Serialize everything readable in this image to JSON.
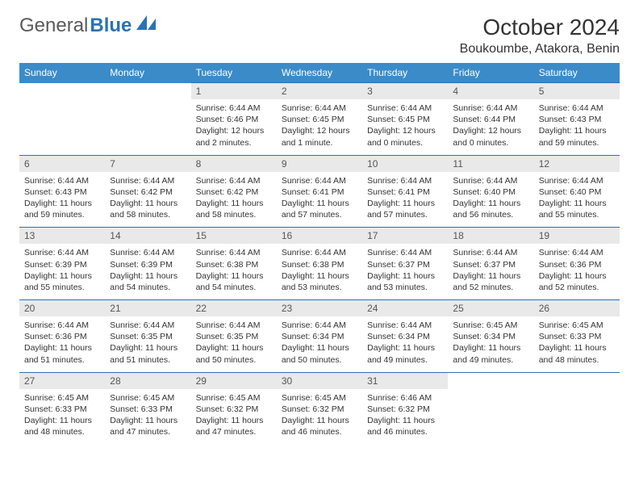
{
  "logo": {
    "text1": "General",
    "text2": "Blue"
  },
  "title": "October 2024",
  "location": "Boukoumbe, Atakora, Benin",
  "colors": {
    "header_bg": "#3b8bc9",
    "header_text": "#ffffff",
    "daynum_bg": "#e9e9e9",
    "border": "#2a72b5",
    "logo_gray": "#5a5a5a",
    "logo_blue": "#2a72b5"
  },
  "weekdays": [
    "Sunday",
    "Monday",
    "Tuesday",
    "Wednesday",
    "Thursday",
    "Friday",
    "Saturday"
  ],
  "weeks": [
    [
      null,
      null,
      {
        "n": "1",
        "sr": "Sunrise: 6:44 AM",
        "ss": "Sunset: 6:46 PM",
        "dl": "Daylight: 12 hours and 2 minutes."
      },
      {
        "n": "2",
        "sr": "Sunrise: 6:44 AM",
        "ss": "Sunset: 6:45 PM",
        "dl": "Daylight: 12 hours and 1 minute."
      },
      {
        "n": "3",
        "sr": "Sunrise: 6:44 AM",
        "ss": "Sunset: 6:45 PM",
        "dl": "Daylight: 12 hours and 0 minutes."
      },
      {
        "n": "4",
        "sr": "Sunrise: 6:44 AM",
        "ss": "Sunset: 6:44 PM",
        "dl": "Daylight: 12 hours and 0 minutes."
      },
      {
        "n": "5",
        "sr": "Sunrise: 6:44 AM",
        "ss": "Sunset: 6:43 PM",
        "dl": "Daylight: 11 hours and 59 minutes."
      }
    ],
    [
      {
        "n": "6",
        "sr": "Sunrise: 6:44 AM",
        "ss": "Sunset: 6:43 PM",
        "dl": "Daylight: 11 hours and 59 minutes."
      },
      {
        "n": "7",
        "sr": "Sunrise: 6:44 AM",
        "ss": "Sunset: 6:42 PM",
        "dl": "Daylight: 11 hours and 58 minutes."
      },
      {
        "n": "8",
        "sr": "Sunrise: 6:44 AM",
        "ss": "Sunset: 6:42 PM",
        "dl": "Daylight: 11 hours and 58 minutes."
      },
      {
        "n": "9",
        "sr": "Sunrise: 6:44 AM",
        "ss": "Sunset: 6:41 PM",
        "dl": "Daylight: 11 hours and 57 minutes."
      },
      {
        "n": "10",
        "sr": "Sunrise: 6:44 AM",
        "ss": "Sunset: 6:41 PM",
        "dl": "Daylight: 11 hours and 57 minutes."
      },
      {
        "n": "11",
        "sr": "Sunrise: 6:44 AM",
        "ss": "Sunset: 6:40 PM",
        "dl": "Daylight: 11 hours and 56 minutes."
      },
      {
        "n": "12",
        "sr": "Sunrise: 6:44 AM",
        "ss": "Sunset: 6:40 PM",
        "dl": "Daylight: 11 hours and 55 minutes."
      }
    ],
    [
      {
        "n": "13",
        "sr": "Sunrise: 6:44 AM",
        "ss": "Sunset: 6:39 PM",
        "dl": "Daylight: 11 hours and 55 minutes."
      },
      {
        "n": "14",
        "sr": "Sunrise: 6:44 AM",
        "ss": "Sunset: 6:39 PM",
        "dl": "Daylight: 11 hours and 54 minutes."
      },
      {
        "n": "15",
        "sr": "Sunrise: 6:44 AM",
        "ss": "Sunset: 6:38 PM",
        "dl": "Daylight: 11 hours and 54 minutes."
      },
      {
        "n": "16",
        "sr": "Sunrise: 6:44 AM",
        "ss": "Sunset: 6:38 PM",
        "dl": "Daylight: 11 hours and 53 minutes."
      },
      {
        "n": "17",
        "sr": "Sunrise: 6:44 AM",
        "ss": "Sunset: 6:37 PM",
        "dl": "Daylight: 11 hours and 53 minutes."
      },
      {
        "n": "18",
        "sr": "Sunrise: 6:44 AM",
        "ss": "Sunset: 6:37 PM",
        "dl": "Daylight: 11 hours and 52 minutes."
      },
      {
        "n": "19",
        "sr": "Sunrise: 6:44 AM",
        "ss": "Sunset: 6:36 PM",
        "dl": "Daylight: 11 hours and 52 minutes."
      }
    ],
    [
      {
        "n": "20",
        "sr": "Sunrise: 6:44 AM",
        "ss": "Sunset: 6:36 PM",
        "dl": "Daylight: 11 hours and 51 minutes."
      },
      {
        "n": "21",
        "sr": "Sunrise: 6:44 AM",
        "ss": "Sunset: 6:35 PM",
        "dl": "Daylight: 11 hours and 51 minutes."
      },
      {
        "n": "22",
        "sr": "Sunrise: 6:44 AM",
        "ss": "Sunset: 6:35 PM",
        "dl": "Daylight: 11 hours and 50 minutes."
      },
      {
        "n": "23",
        "sr": "Sunrise: 6:44 AM",
        "ss": "Sunset: 6:34 PM",
        "dl": "Daylight: 11 hours and 50 minutes."
      },
      {
        "n": "24",
        "sr": "Sunrise: 6:44 AM",
        "ss": "Sunset: 6:34 PM",
        "dl": "Daylight: 11 hours and 49 minutes."
      },
      {
        "n": "25",
        "sr": "Sunrise: 6:45 AM",
        "ss": "Sunset: 6:34 PM",
        "dl": "Daylight: 11 hours and 49 minutes."
      },
      {
        "n": "26",
        "sr": "Sunrise: 6:45 AM",
        "ss": "Sunset: 6:33 PM",
        "dl": "Daylight: 11 hours and 48 minutes."
      }
    ],
    [
      {
        "n": "27",
        "sr": "Sunrise: 6:45 AM",
        "ss": "Sunset: 6:33 PM",
        "dl": "Daylight: 11 hours and 48 minutes."
      },
      {
        "n": "28",
        "sr": "Sunrise: 6:45 AM",
        "ss": "Sunset: 6:33 PM",
        "dl": "Daylight: 11 hours and 47 minutes."
      },
      {
        "n": "29",
        "sr": "Sunrise: 6:45 AM",
        "ss": "Sunset: 6:32 PM",
        "dl": "Daylight: 11 hours and 47 minutes."
      },
      {
        "n": "30",
        "sr": "Sunrise: 6:45 AM",
        "ss": "Sunset: 6:32 PM",
        "dl": "Daylight: 11 hours and 46 minutes."
      },
      {
        "n": "31",
        "sr": "Sunrise: 6:46 AM",
        "ss": "Sunset: 6:32 PM",
        "dl": "Daylight: 11 hours and 46 minutes."
      },
      null,
      null
    ]
  ]
}
